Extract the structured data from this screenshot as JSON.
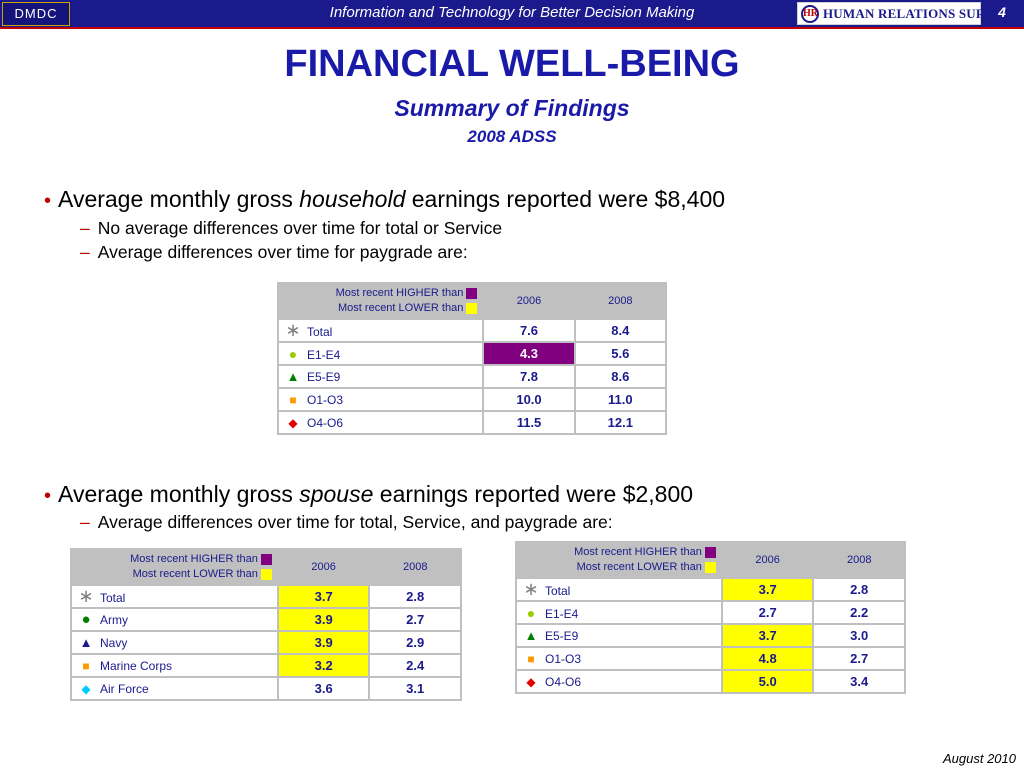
{
  "header": {
    "logo_left": "DMDC",
    "tagline": "Information and Technology for Better Decision Making",
    "logo_right_mark": "HR",
    "logo_right_text": "HUMAN RELATIONS SURVEYS",
    "page_number": "4"
  },
  "title": "FINANCIAL WELL-BEING",
  "subtitle": "Summary of Findings",
  "subtitle2": "2008 ADSS",
  "bullets": {
    "b1_pre": "Average monthly gross ",
    "b1_em": "household",
    "b1_post": " earnings reported were $8,400",
    "b1_sub1": "No average differences over time for total or Service",
    "b1_sub2": "Average differences over time for paygrade are:",
    "b2_pre": "Average monthly gross ",
    "b2_em": "spouse",
    "b2_post": " earnings reported were $2,800",
    "b2_sub1": "Average differences over time for total, Service, and paygrade are:"
  },
  "legend": {
    "higher": "Most recent HIGHER than",
    "lower": "Most recent LOWER than"
  },
  "colors": {
    "higher": "#800080",
    "lower": "#ffff00"
  },
  "table1": {
    "years": [
      "2006",
      "2008"
    ],
    "rows": [
      {
        "icon": "asterisk-icon",
        "label": "Total",
        "v2006": "7.6",
        "v2008": "8.4",
        "hl": ""
      },
      {
        "icon": "green-circle-icon",
        "label": "E1-E4",
        "v2006": "4.3",
        "v2008": "5.6",
        "hl": "hi"
      },
      {
        "icon": "green-triangle-icon",
        "label": "E5-E9",
        "v2006": "7.8",
        "v2008": "8.6",
        "hl": ""
      },
      {
        "icon": "orange-square-icon",
        "label": "O1-O3",
        "v2006": "10.0",
        "v2008": "11.0",
        "hl": ""
      },
      {
        "icon": "red-diamond-icon",
        "label": "O4-O6",
        "v2006": "11.5",
        "v2008": "12.1",
        "hl": ""
      }
    ]
  },
  "table2": {
    "years": [
      "2006",
      "2008"
    ],
    "rows": [
      {
        "icon": "asterisk-icon",
        "label": "Total",
        "v2006": "3.7",
        "v2008": "2.8",
        "hl": "lo"
      },
      {
        "icon": "dark-green-circle-icon",
        "label": "Army",
        "v2006": "3.9",
        "v2008": "2.7",
        "hl": "lo"
      },
      {
        "icon": "navy-triangle-icon",
        "label": "Navy",
        "v2006": "3.9",
        "v2008": "2.9",
        "hl": "lo"
      },
      {
        "icon": "orange-square-icon",
        "label": "Marine Corps",
        "v2006": "3.2",
        "v2008": "2.4",
        "hl": "lo"
      },
      {
        "icon": "cyan-diamond-icon",
        "label": "Air Force",
        "v2006": "3.6",
        "v2008": "3.1",
        "hl": ""
      }
    ]
  },
  "table3": {
    "years": [
      "2006",
      "2008"
    ],
    "rows": [
      {
        "icon": "asterisk-icon",
        "label": "Total",
        "v2006": "3.7",
        "v2008": "2.8",
        "hl": "lo"
      },
      {
        "icon": "green-circle-icon",
        "label": "E1-E4",
        "v2006": "2.7",
        "v2008": "2.2",
        "hl": ""
      },
      {
        "icon": "green-triangle-icon",
        "label": "E5-E9",
        "v2006": "3.7",
        "v2008": "3.0",
        "hl": "lo"
      },
      {
        "icon": "orange-square-icon",
        "label": "O1-O3",
        "v2006": "4.8",
        "v2008": "2.7",
        "hl": "lo"
      },
      {
        "icon": "red-diamond-icon",
        "label": "O4-O6",
        "v2006": "5.0",
        "v2008": "3.4",
        "hl": "lo"
      }
    ]
  },
  "footer": "August 2010"
}
